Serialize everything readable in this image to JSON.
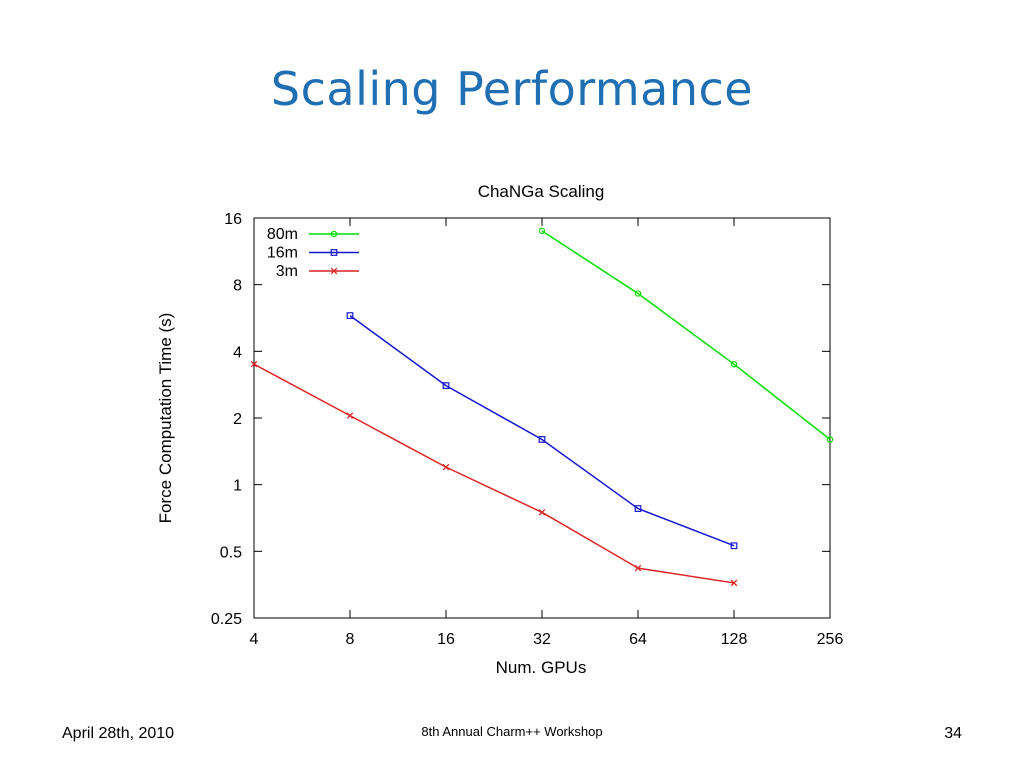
{
  "slide": {
    "title": "Scaling Performance",
    "footer_left": "April 28th, 2010",
    "footer_center": "8th Annual Charm++ Workshop",
    "footer_right": "34"
  },
  "chart_data": {
    "type": "line",
    "title": "ChaNGa Scaling",
    "xlabel": "Num. GPUs",
    "ylabel": "Force Computation Time (s)",
    "xscale": "log2",
    "yscale": "log2",
    "xlim": [
      4,
      256
    ],
    "ylim": [
      0.25,
      16
    ],
    "xticks": [
      "4",
      "8",
      "16",
      "32",
      "64",
      "128",
      "256"
    ],
    "yticks": [
      "16",
      "8",
      "4",
      "2",
      "1",
      "0.5",
      "0.25"
    ],
    "grid": false,
    "legend_position": "top-left",
    "series": [
      {
        "name": "80m",
        "color": "#00dd00",
        "marker": "circle",
        "x": [
          32,
          64,
          128,
          256
        ],
        "y": [
          14.0,
          7.3,
          3.5,
          1.6
        ]
      },
      {
        "name": "16m",
        "color": "#1515d0",
        "marker": "square",
        "x": [
          8,
          16,
          32,
          64,
          128
        ],
        "y": [
          5.8,
          2.8,
          1.6,
          0.78,
          0.53
        ]
      },
      {
        "name": "3m",
        "color": "#dd2222",
        "marker": "x",
        "x": [
          4,
          8,
          16,
          32,
          64,
          128
        ],
        "y": [
          3.5,
          2.05,
          1.2,
          0.75,
          0.42,
          0.36
        ]
      }
    ]
  }
}
